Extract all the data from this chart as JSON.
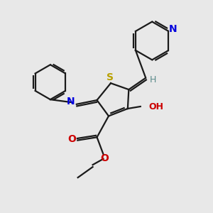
{
  "background_color": "#e8e8e8",
  "line_color": "#1a1a1a",
  "sulfur_color": "#b8a000",
  "nitrogen_color": "#0000dd",
  "oxygen_color": "#cc0000",
  "hydrogen_color": "#5a8a8a",
  "figsize": [
    3.0,
    3.0
  ],
  "dpi": 100,
  "lw": 1.6,
  "xlim": [
    0,
    10
  ],
  "ylim": [
    0,
    10
  ]
}
